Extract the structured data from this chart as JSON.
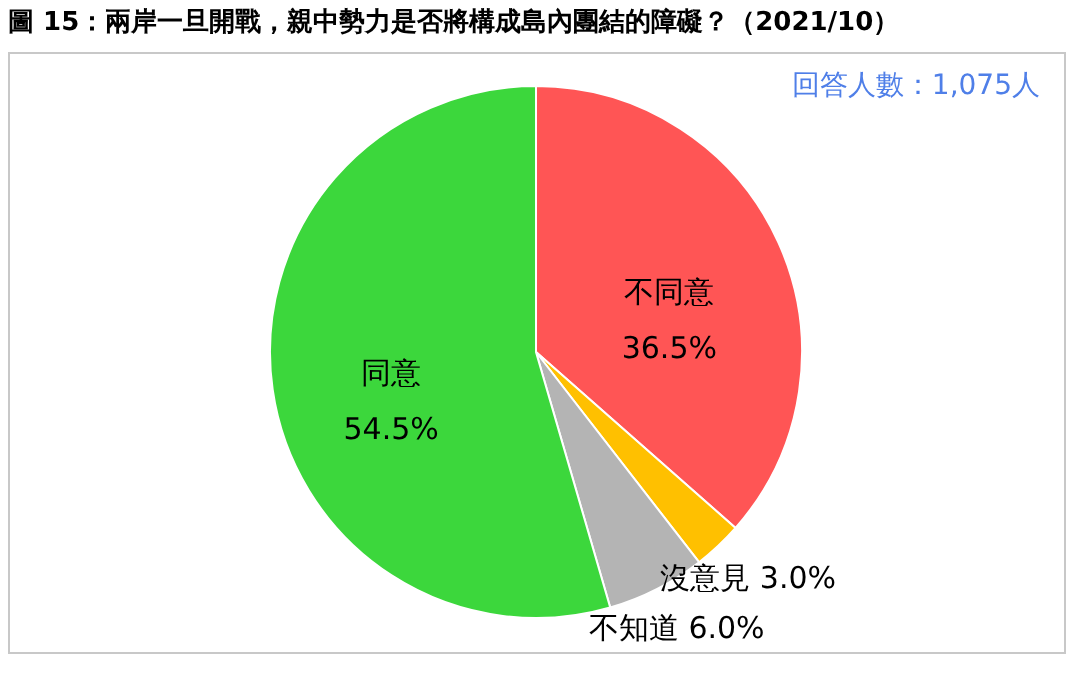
{
  "chart_data": {
    "type": "pie",
    "title": "圖 15：兩岸一旦開戰，親中勢力是否將構成島內團結的障礙？（2021/10）",
    "categories": [
      "不同意",
      "沒意見",
      "不知道",
      "同意"
    ],
    "values": [
      36.5,
      3.0,
      6.0,
      54.5
    ],
    "colors": [
      "#ff5555",
      "#ffc000",
      "#b4b4b4",
      "#3cd73c"
    ],
    "value_labels": [
      "36.5%",
      "3.0%",
      "6.0%",
      "54.5%"
    ],
    "annotations": [
      "回答人數：1,075人"
    ]
  }
}
